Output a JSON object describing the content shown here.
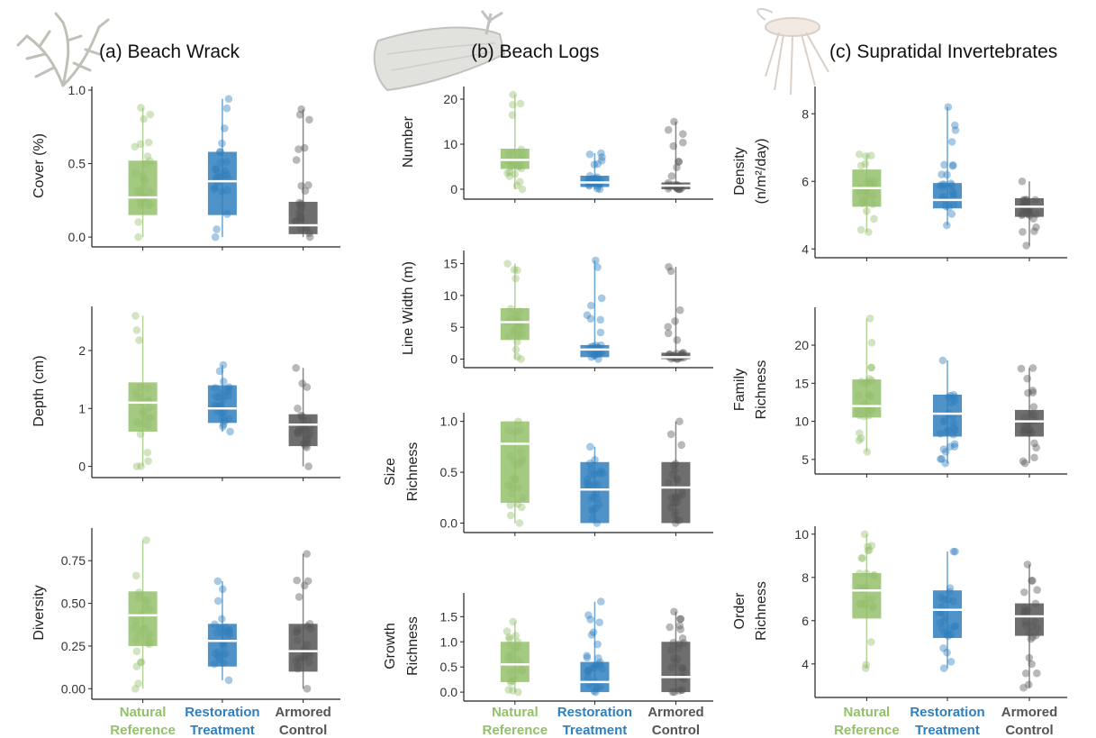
{
  "colors": {
    "natural": "#94bf6b",
    "restoration": "#2f7fbd",
    "armored": "#555555"
  },
  "groups": [
    {
      "key": "natural",
      "line1": "Natural",
      "line2": "Reference"
    },
    {
      "key": "restoration",
      "line1": "Restoration",
      "line2": "Treatment"
    },
    {
      "key": "armored",
      "line1": "Armored",
      "line2": "Control"
    }
  ],
  "columns": [
    {
      "title": "(a) Beach Wrack",
      "icon": "seaweed-icon"
    },
    {
      "title": "(b) Beach Logs",
      "icon": "log-icon"
    },
    {
      "title": "(c) Supratidal Invertebrates",
      "icon": "insect-icon"
    }
  ],
  "chart_data": [
    {
      "id": "cover",
      "type": "box",
      "ylabel": [
        "Cover (%)"
      ],
      "ylim": [
        -0.03,
        1.0
      ],
      "ticks": [
        0.0,
        0.5,
        1.0
      ],
      "tick_labels": [
        "0.0",
        "0.5",
        "1.0"
      ],
      "stats": [
        [
          0.0,
          0.15,
          0.27,
          0.52,
          0.88
        ],
        [
          0.0,
          0.15,
          0.38,
          0.58,
          0.94
        ],
        [
          0.0,
          0.02,
          0.08,
          0.24,
          0.87
        ]
      ]
    },
    {
      "id": "depth",
      "type": "box",
      "ylabel": [
        "Depth (cm)"
      ],
      "ylim": [
        -0.1,
        2.7
      ],
      "ticks": [
        0,
        1,
        2
      ],
      "tick_labels": [
        "0",
        "1",
        "2"
      ],
      "stats": [
        [
          0.0,
          0.6,
          1.1,
          1.45,
          2.6
        ],
        [
          0.6,
          0.75,
          1.0,
          1.4,
          1.75
        ],
        [
          0.0,
          0.35,
          0.72,
          0.9,
          1.7
        ]
      ]
    },
    {
      "id": "diversity",
      "type": "box",
      "ylabel": [
        "Diversity"
      ],
      "ylim": [
        -0.03,
        0.92
      ],
      "ticks": [
        0.0,
        0.25,
        0.5,
        0.75
      ],
      "tick_labels": [
        "0.00",
        "0.25",
        "0.50",
        "0.75"
      ],
      "stats": [
        [
          0.0,
          0.25,
          0.43,
          0.57,
          0.87
        ],
        [
          0.05,
          0.13,
          0.28,
          0.38,
          0.63
        ],
        [
          0.0,
          0.1,
          0.22,
          0.38,
          0.79
        ]
      ]
    },
    {
      "id": "number",
      "type": "box",
      "ylabel": [
        "Number"
      ],
      "ylim": [
        -1,
        22
      ],
      "ticks": [
        0,
        10,
        20
      ],
      "tick_labels": [
        "0",
        "10",
        "20"
      ],
      "stats": [
        [
          0,
          4.5,
          6.5,
          9,
          21
        ],
        [
          0,
          0.5,
          1.5,
          3,
          8
        ],
        [
          0,
          0,
          0.8,
          1.5,
          15
        ]
      ]
    },
    {
      "id": "linewidth",
      "type": "box",
      "ylabel": [
        "Line Width (m)"
      ],
      "ylim": [
        -0.5,
        16.5
      ],
      "ticks": [
        0,
        5,
        10,
        15
      ],
      "tick_labels": [
        "0",
        "5",
        "10",
        "15"
      ],
      "stats": [
        [
          0,
          3,
          5.8,
          8,
          15
        ],
        [
          0,
          0.3,
          1.5,
          2.2,
          15.5
        ],
        [
          0,
          0,
          0.3,
          1.0,
          14.5
        ]
      ]
    },
    {
      "id": "size",
      "type": "box",
      "ylabel": [
        "Size",
        "Richness"
      ],
      "ylim": [
        -0.04,
        1.05
      ],
      "ticks": [
        0.0,
        0.5,
        1.0
      ],
      "tick_labels": [
        "0.0",
        "0.5",
        "1.0"
      ],
      "stats": [
        [
          0,
          0.2,
          0.78,
          1.0,
          1.0
        ],
        [
          0,
          0,
          0.33,
          0.6,
          0.75
        ],
        [
          0,
          0,
          0.35,
          0.6,
          1.0
        ]
      ]
    },
    {
      "id": "growth",
      "type": "box",
      "ylabel": [
        "Growth",
        "Richness"
      ],
      "ylim": [
        -0.07,
        1.9
      ],
      "ticks": [
        0.0,
        0.5,
        1.0,
        1.5
      ],
      "tick_labels": [
        "0.0",
        "0.5",
        "1.0",
        "1.5"
      ],
      "stats": [
        [
          0,
          0.2,
          0.55,
          1.0,
          1.4
        ],
        [
          0,
          0,
          0.2,
          0.6,
          1.8
        ],
        [
          0,
          0,
          0.3,
          1.0,
          1.6
        ]
      ]
    },
    {
      "id": "density",
      "type": "box",
      "ylabel": [
        "Density",
        "(n/m²/day)"
      ],
      "ylim": [
        3.9,
        8.7
      ],
      "ticks": [
        4,
        6,
        8
      ],
      "tick_labels": [
        "4",
        "6",
        "8"
      ],
      "stats": [
        [
          4.5,
          5.25,
          5.8,
          6.35,
          6.8
        ],
        [
          4.7,
          5.2,
          5.45,
          5.95,
          8.2
        ],
        [
          4.1,
          4.95,
          5.25,
          5.5,
          6.0
        ]
      ]
    },
    {
      "id": "family",
      "type": "box",
      "ylabel": [
        "Family",
        "Richness"
      ],
      "ylim": [
        3.8,
        24.5
      ],
      "ticks": [
        5,
        10,
        15,
        20
      ],
      "tick_labels": [
        "5",
        "10",
        "15",
        "20"
      ],
      "stats": [
        [
          6,
          10.5,
          12,
          15.5,
          23.5
        ],
        [
          4.5,
          8,
          11,
          13.5,
          18
        ],
        [
          4.5,
          8,
          10,
          11.5,
          17
        ]
      ]
    },
    {
      "id": "order",
      "type": "box",
      "ylabel": [
        "Order",
        "Richness"
      ],
      "ylim": [
        2.7,
        10.2
      ],
      "ticks": [
        4,
        6,
        8,
        10
      ],
      "tick_labels": [
        "4",
        "6",
        "8",
        "10"
      ],
      "stats": [
        [
          3.8,
          6.1,
          7.4,
          8.2,
          10.0
        ],
        [
          3.8,
          5.2,
          6.5,
          7.4,
          9.2
        ],
        [
          2.9,
          5.3,
          6.2,
          6.8,
          8.6
        ]
      ]
    }
  ]
}
